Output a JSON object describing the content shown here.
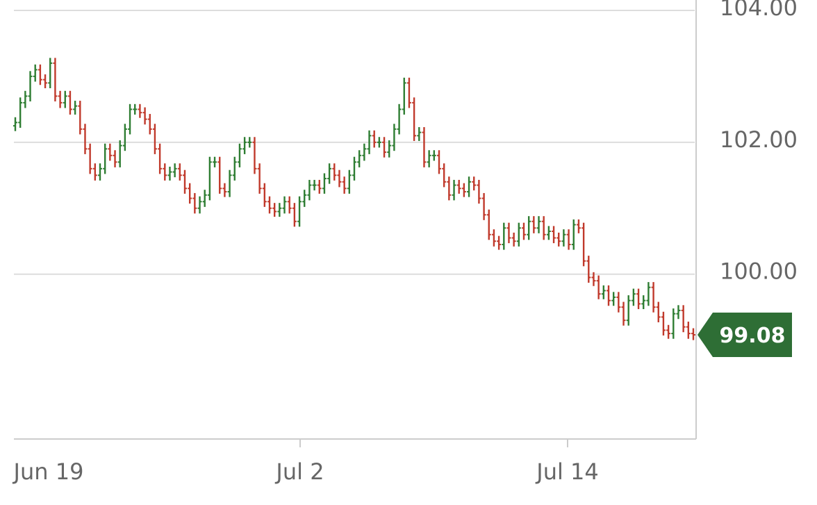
{
  "chart_data": {
    "type": "line",
    "style": "ohlc-bars",
    "title": "",
    "xlabel": "",
    "ylabel": "",
    "ylim": [
      97.5,
      104.0
    ],
    "y_axis_position": "right",
    "y_ticks": [
      "100.00",
      "102.00",
      "104.00"
    ],
    "x_ticks": [
      "Jun 19",
      "Jul 2",
      "Jul 14"
    ],
    "grid": true,
    "current_price": "99.08",
    "colors": {
      "up": "#2e7d32",
      "down": "#c0392b",
      "price_tag": "#2e6e35",
      "grid": "#dddddd",
      "axis": "#cccccc"
    },
    "series": [
      {
        "values": [
          102.3,
          102.6,
          102.7,
          103.0,
          103.1,
          102.95,
          102.9,
          103.2,
          102.7,
          102.6,
          102.7,
          102.5,
          102.55,
          102.2,
          101.9,
          101.6,
          101.5,
          101.6,
          101.9,
          101.8,
          101.7,
          101.95,
          102.2,
          102.5,
          102.5,
          102.45,
          102.35,
          102.2,
          101.9,
          101.6,
          101.5,
          101.55,
          101.6,
          101.5,
          101.3,
          101.15,
          101.0,
          101.1,
          101.2,
          101.7,
          101.7,
          101.3,
          101.25,
          101.5,
          101.7,
          101.9,
          102.0,
          102.0,
          101.6,
          101.3,
          101.1,
          101.0,
          100.95,
          101.0,
          101.1,
          101.0,
          100.8,
          101.1,
          101.2,
          101.35,
          101.35,
          101.3,
          101.45,
          101.6,
          101.5,
          101.4,
          101.3,
          101.5,
          101.7,
          101.8,
          101.9,
          102.1,
          102.0,
          102.0,
          101.85,
          101.95,
          102.2,
          102.5,
          102.9,
          102.6,
          102.1,
          102.15,
          101.7,
          101.8,
          101.8,
          101.6,
          101.4,
          101.2,
          101.35,
          101.3,
          101.25,
          101.4,
          101.35,
          101.15,
          100.9,
          100.6,
          100.5,
          100.45,
          100.7,
          100.55,
          100.5,
          100.7,
          100.6,
          100.8,
          100.7,
          100.8,
          100.6,
          100.65,
          100.55,
          100.5,
          100.6,
          100.45,
          100.75,
          100.7,
          100.2,
          99.95,
          99.9,
          99.7,
          99.75,
          99.6,
          99.65,
          99.5,
          99.3,
          99.6,
          99.7,
          99.55,
          99.6,
          99.8,
          99.5,
          99.35,
          99.15,
          99.1,
          99.4,
          99.45,
          99.2,
          99.1,
          99.08
        ]
      }
    ]
  }
}
